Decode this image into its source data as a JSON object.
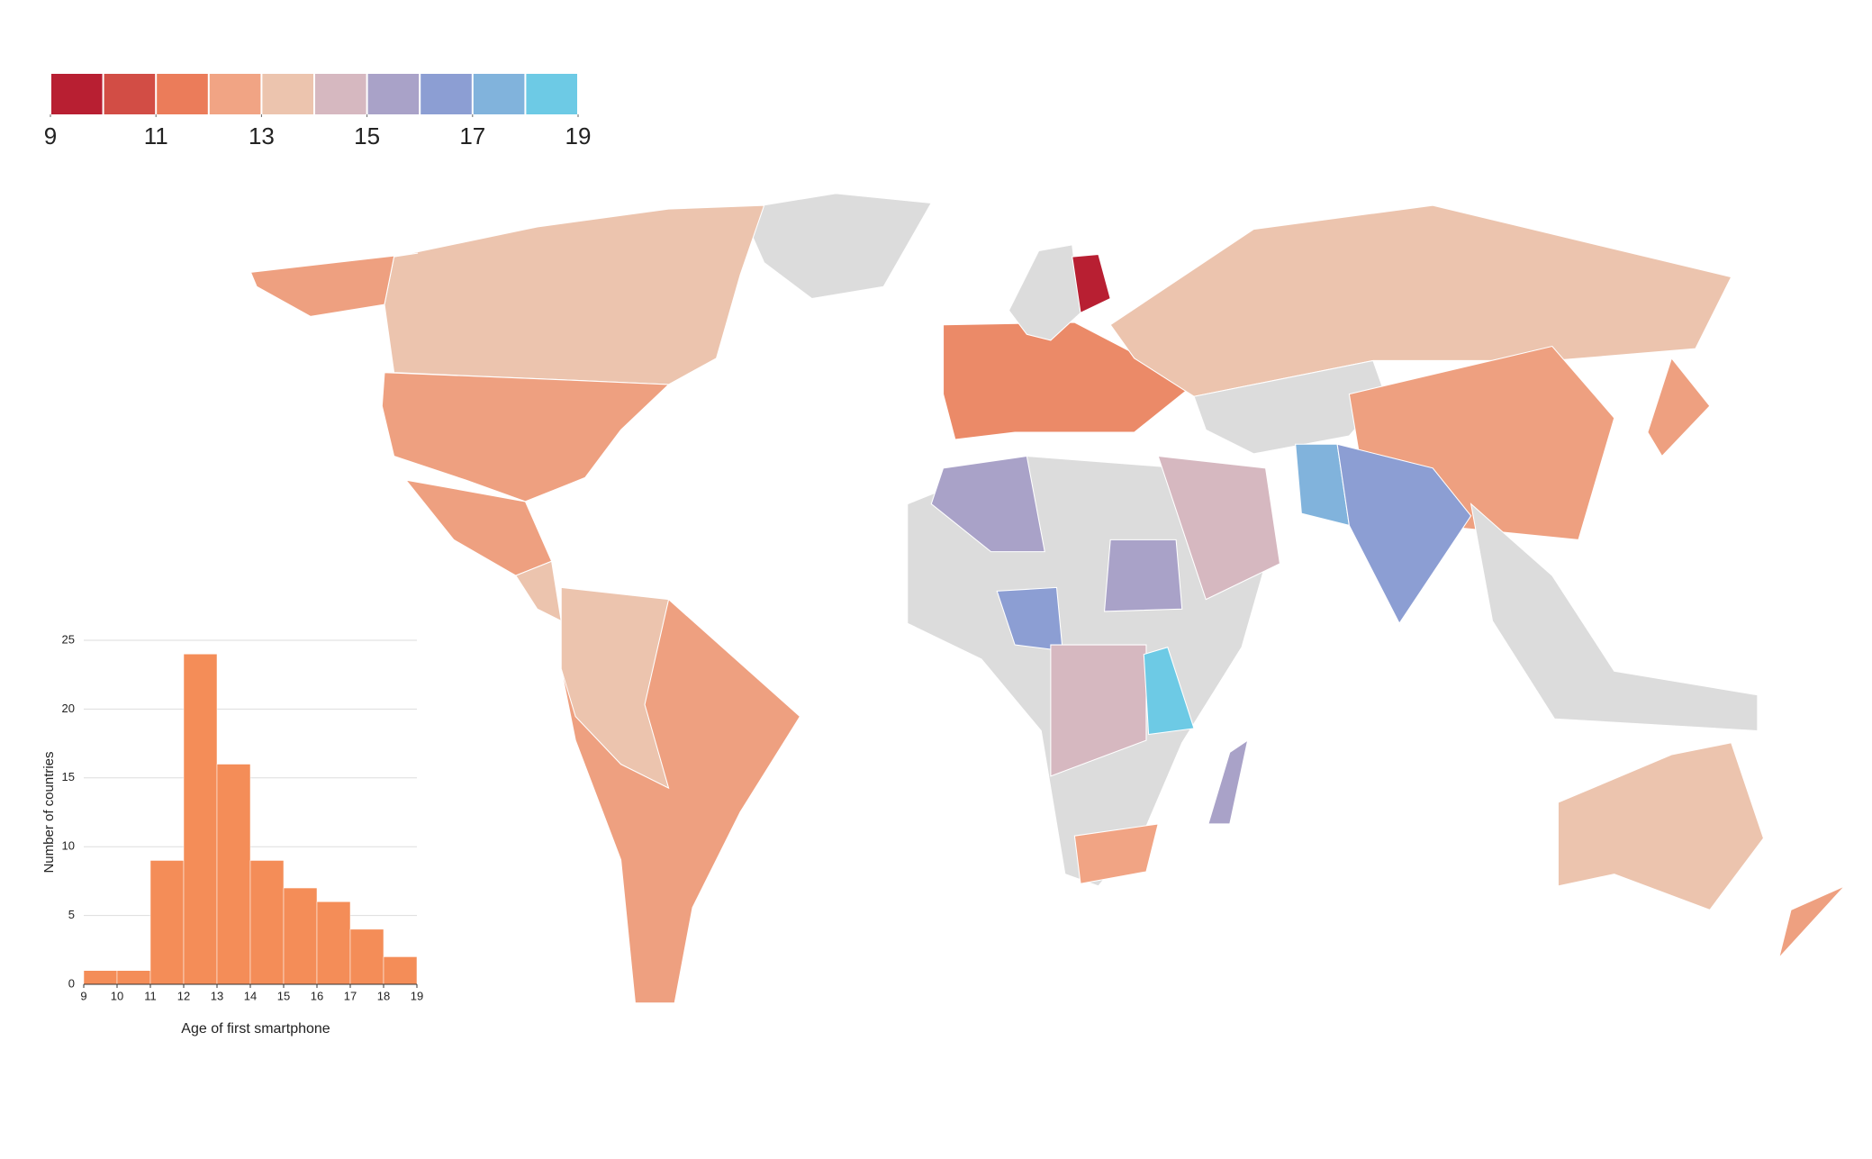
{
  "chart_data": [
    {
      "type": "map",
      "colorscale": {
        "colors": [
          "#b81f32",
          "#d24d45",
          "#eb7c5a",
          "#f1a484",
          "#ecc4ae",
          "#d6b8c0",
          "#a9a2c8",
          "#8c9ed3",
          "#81b3dc",
          "#6dcae5"
        ],
        "range": [
          9,
          19
        ],
        "ticks": [
          9,
          11,
          13,
          15,
          17,
          19
        ]
      },
      "no_data_color": "#dcdcdc"
    },
    {
      "type": "histogram",
      "bins": [
        9,
        10,
        11,
        12,
        13,
        14,
        15,
        16,
        17,
        18,
        19
      ],
      "values": [
        1,
        1,
        9,
        24,
        16,
        9,
        7,
        6,
        4,
        2
      ],
      "color": "#f48d58",
      "xlim": [
        9,
        19
      ],
      "xticks": [
        9,
        10,
        11,
        12,
        13,
        14,
        15,
        16,
        17,
        18,
        19
      ],
      "ylim": [
        0,
        25
      ],
      "yticks": [
        0,
        5,
        10,
        15,
        20,
        25
      ],
      "xlabel": "Age of first smartphone",
      "ylabel": "Number of countries",
      "grid": true
    }
  ]
}
